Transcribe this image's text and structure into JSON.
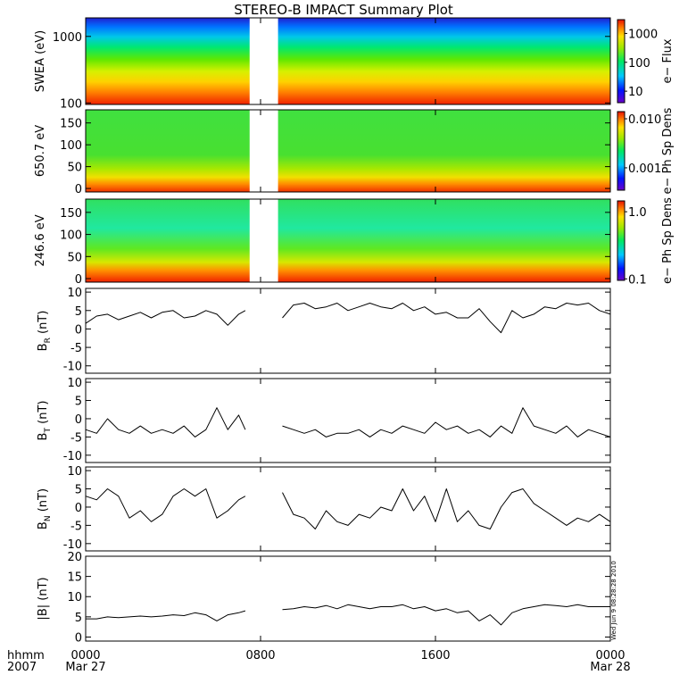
{
  "title": "STEREO-B IMPACT Summary Plot",
  "time_axis": {
    "row1_label": "hhmm",
    "row2_label": "2007",
    "ticks": [
      {
        "hhmm": "0000",
        "date": "Mar 27",
        "hour": 0
      },
      {
        "hhmm": "0800",
        "date": "",
        "hour": 8
      },
      {
        "hhmm": "1600",
        "date": "",
        "hour": 16
      },
      {
        "hhmm": "0000",
        "date": "Mar 28",
        "hour": 24
      }
    ],
    "data_gap_hours": [
      7.5,
      8.8
    ]
  },
  "timestamp": "Wed Jun  9 08:28:28 2010",
  "chart_data": [
    {
      "type": "heatmap",
      "name": "swea",
      "ylabel": "SWEA (eV)",
      "ylog": true,
      "ylim": [
        95,
        1900
      ],
      "yticks": [
        "100",
        "1000"
      ],
      "colorbar": {
        "label": "e− Flux",
        "log": true,
        "range": [
          4,
          3000
        ],
        "ticks": [
          "10",
          "100",
          "1000"
        ]
      }
    },
    {
      "type": "heatmap",
      "name": "pad650",
      "ylabel": "650.7 eV",
      "ylim": [
        -8,
        180
      ],
      "yticks": [
        "0",
        "50",
        "100",
        "150"
      ],
      "colorbar": {
        "label": "e− Ph Sp Dens",
        "log": true,
        "range": [
          0.00035,
          0.014
        ],
        "ticks": [
          "0.001",
          "0.010"
        ]
      }
    },
    {
      "type": "heatmap",
      "name": "pad246",
      "ylabel": "246.6 eV",
      "ylim": [
        -8,
        180
      ],
      "yticks": [
        "0",
        "50",
        "100",
        "150"
      ],
      "colorbar": {
        "label": "e− Ph Sp Dens",
        "log": true,
        "range": [
          0.095,
          1.45
        ],
        "ticks": [
          "0.1",
          "1.0"
        ]
      }
    },
    {
      "type": "line",
      "name": "br",
      "ylabel_main": "B",
      "ylabel_sub": "R",
      "ylabel_unit": " (nT)",
      "ylim": [
        -12,
        11
      ],
      "yticks": [
        "-10",
        "-5",
        "0",
        "5",
        "10"
      ],
      "x_hours": [
        0,
        0.5,
        1,
        1.5,
        2,
        2.5,
        3,
        3.5,
        4,
        4.5,
        5,
        5.5,
        6,
        6.5,
        7,
        7.3,
        9.0,
        9.5,
        10,
        10.5,
        11,
        11.5,
        12,
        12.5,
        13,
        13.5,
        14,
        14.5,
        15,
        15.5,
        16,
        16.5,
        17,
        17.5,
        18,
        18.5,
        19,
        19.5,
        20,
        20.5,
        21,
        21.5,
        22,
        22.5,
        23,
        23.5,
        24
      ],
      "values": [
        1.5,
        3.5,
        4,
        2.5,
        3.5,
        4.5,
        3,
        4.5,
        5,
        3,
        3.5,
        5,
        4,
        1,
        4,
        5,
        3,
        6.5,
        7,
        5.5,
        6,
        7,
        5,
        6,
        7,
        6,
        5.5,
        7,
        5,
        6,
        4,
        4.5,
        3,
        3,
        5.5,
        2,
        -1,
        5,
        3,
        4,
        6,
        5.5,
        7,
        6.5,
        7,
        5,
        4
      ]
    },
    {
      "type": "line",
      "name": "bt",
      "ylabel_main": "B",
      "ylabel_sub": "T",
      "ylabel_unit": " (nT)",
      "ylim": [
        -12,
        11
      ],
      "yticks": [
        "-10",
        "-5",
        "0",
        "5",
        "10"
      ],
      "x_hours": [
        0,
        0.5,
        1,
        1.5,
        2,
        2.5,
        3,
        3.5,
        4,
        4.5,
        5,
        5.5,
        6,
        6.5,
        7,
        7.3,
        9.0,
        9.5,
        10,
        10.5,
        11,
        11.5,
        12,
        12.5,
        13,
        13.5,
        14,
        14.5,
        15,
        15.5,
        16,
        16.5,
        17,
        17.5,
        18,
        18.5,
        19,
        19.5,
        20,
        20.5,
        21,
        21.5,
        22,
        22.5,
        23,
        23.5,
        24
      ],
      "values": [
        -3,
        -4,
        0,
        -3,
        -4,
        -2,
        -4,
        -3,
        -4,
        -2,
        -5,
        -3,
        3,
        -3,
        1,
        -3,
        -2,
        -3,
        -4,
        -3,
        -5,
        -4,
        -4,
        -3,
        -5,
        -3,
        -4,
        -2,
        -3,
        -4,
        -1,
        -3,
        -2,
        -4,
        -3,
        -5,
        -2,
        -4,
        3,
        -2,
        -3,
        -4,
        -2,
        -5,
        -3,
        -4,
        -5
      ]
    },
    {
      "type": "line",
      "name": "bn",
      "ylabel_main": "B",
      "ylabel_sub": "N",
      "ylabel_unit": " (nT)",
      "ylim": [
        -12,
        11
      ],
      "yticks": [
        "-10",
        "-5",
        "0",
        "5",
        "10"
      ],
      "x_hours": [
        0,
        0.5,
        1,
        1.5,
        2,
        2.5,
        3,
        3.5,
        4,
        4.5,
        5,
        5.5,
        6,
        6.5,
        7,
        7.3,
        9.0,
        9.5,
        10,
        10.5,
        11,
        11.5,
        12,
        12.5,
        13,
        13.5,
        14,
        14.5,
        15,
        15.5,
        16,
        16.5,
        17,
        17.5,
        18,
        18.5,
        19,
        19.5,
        20,
        20.5,
        21,
        21.5,
        22,
        22.5,
        23,
        23.5,
        24
      ],
      "values": [
        3,
        2,
        5,
        3,
        -3,
        -1,
        -4,
        -2,
        3,
        5,
        3,
        5,
        -3,
        -1,
        2,
        3,
        4,
        -2,
        -3,
        -6,
        -1,
        -4,
        -5,
        -2,
        -3,
        0,
        -1,
        5,
        -1,
        3,
        -4,
        5,
        -4,
        -1,
        -5,
        -6,
        0,
        4,
        5,
        1,
        -1,
        -3,
        -5,
        -3,
        -4,
        -2,
        -4
      ]
    },
    {
      "type": "line",
      "name": "bmag",
      "ylabel": "|B| (nT)",
      "ylim": [
        -1,
        20
      ],
      "yticks": [
        "0",
        "5",
        "10",
        "15",
        "20"
      ],
      "x_hours": [
        0,
        0.5,
        1,
        1.5,
        2,
        2.5,
        3,
        3.5,
        4,
        4.5,
        5,
        5.5,
        6,
        6.5,
        7,
        7.3,
        9.0,
        9.5,
        10,
        10.5,
        11,
        11.5,
        12,
        12.5,
        13,
        13.5,
        14,
        14.5,
        15,
        15.5,
        16,
        16.5,
        17,
        17.5,
        18,
        18.5,
        19,
        19.5,
        20,
        20.5,
        21,
        21.5,
        22,
        22.5,
        23,
        23.5,
        24
      ],
      "values": [
        4.5,
        4.5,
        5,
        4.8,
        5,
        5.2,
        5,
        5.2,
        5.5,
        5.3,
        6,
        5.5,
        4,
        5.5,
        6,
        6.5,
        6.8,
        7,
        7.5,
        7.2,
        7.8,
        7,
        8,
        7.5,
        7,
        7.5,
        7.5,
        8,
        7,
        7.5,
        6.5,
        7,
        6,
        6.5,
        4,
        5.5,
        3,
        6,
        7,
        7.5,
        8,
        7.8,
        7.5,
        8,
        7.5,
        7.5,
        7.5
      ]
    }
  ]
}
